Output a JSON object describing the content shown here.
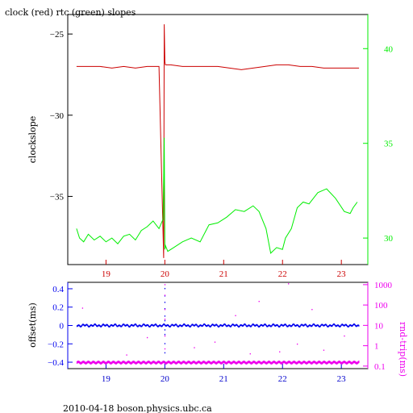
{
  "footer": "2010-04-18 boson.physics.ubc.ca",
  "colors": {
    "clock": "#cc0000",
    "rtc": "#00ee00",
    "offset": "#0000ee",
    "rndtrip": "#ee00ee",
    "frame": "#000000",
    "x_axis_top": "#cc0000",
    "x_axis_bottom": "#0000cc"
  },
  "chart_data": [
    {
      "type": "line",
      "title": "clock (red) rtc (green) slopes",
      "ylabel": "clockslope",
      "xlim": [
        18.35,
        23.45
      ],
      "ylim": [
        -39.2,
        -23.8
      ],
      "y2lim": [
        28.6,
        41.8
      ],
      "x_ticks": [
        19,
        20,
        21,
        22,
        23
      ],
      "y_ticks": [
        -35,
        -30,
        -25
      ],
      "y2_ticks": [
        30,
        35,
        40
      ],
      "series": [
        {
          "axis": "left",
          "color": "#cc0000",
          "x": [
            18.5,
            18.7,
            18.9,
            19.1,
            19.3,
            19.5,
            19.7,
            19.9,
            19.98,
            19.99,
            20.0,
            20.01,
            20.1,
            20.3,
            20.5,
            20.7,
            20.9,
            21.1,
            21.3,
            21.5,
            21.7,
            21.9,
            22.0,
            22.1,
            22.3,
            22.5,
            22.7,
            22.9,
            23.1,
            23.3
          ],
          "values": [
            -27.0,
            -27.0,
            -27.0,
            -27.1,
            -27.0,
            -27.1,
            -27.0,
            -27.0,
            -38.8,
            -24.4,
            -26.7,
            -26.9,
            -26.9,
            -27.0,
            -27.0,
            -27.0,
            -27.0,
            -27.1,
            -27.2,
            -27.1,
            -27.0,
            -26.9,
            -26.9,
            -26.9,
            -27.0,
            -27.0,
            -27.1,
            -27.1,
            -27.1,
            -27.1
          ]
        },
        {
          "axis": "right",
          "color": "#00ee00",
          "x": [
            18.5,
            18.55,
            18.62,
            18.7,
            18.8,
            18.9,
            19.0,
            19.1,
            19.2,
            19.3,
            19.4,
            19.5,
            19.6,
            19.7,
            19.8,
            19.9,
            19.97,
            19.99,
            20.0,
            20.01,
            20.05,
            20.15,
            20.3,
            20.45,
            20.6,
            20.75,
            20.9,
            21.05,
            21.2,
            21.35,
            21.5,
            21.6,
            21.72,
            21.8,
            21.9,
            22.0,
            22.05,
            22.15,
            22.25,
            22.35,
            22.45,
            22.6,
            22.75,
            22.9,
            23.05,
            23.15,
            23.2,
            23.27
          ],
          "values": [
            30.5,
            30.0,
            29.8,
            30.2,
            29.9,
            30.1,
            29.8,
            30.0,
            29.7,
            30.1,
            30.2,
            29.9,
            30.4,
            30.6,
            30.9,
            30.5,
            31.0,
            35.3,
            29.4,
            29.6,
            29.3,
            29.5,
            29.8,
            30.0,
            29.8,
            30.7,
            30.8,
            31.1,
            31.5,
            31.4,
            31.7,
            31.4,
            30.5,
            29.2,
            29.5,
            29.4,
            30.0,
            30.5,
            31.6,
            31.9,
            31.8,
            32.4,
            32.6,
            32.1,
            31.4,
            31.3,
            31.6,
            31.9
          ]
        }
      ]
    },
    {
      "type": "scatter",
      "ylabel": "offset(ms)",
      "y2label": "rnd-trip(ms)",
      "xlim": [
        18.35,
        23.45
      ],
      "ylim": [
        -0.47,
        0.47
      ],
      "y2lim": [
        0.075,
        1300
      ],
      "y2scale": "log",
      "x_ticks": [
        19,
        20,
        21,
        22,
        23
      ],
      "y_ticks": [
        -0.4,
        -0.2,
        0,
        0.2,
        0.4
      ],
      "y2_ticks": [
        0.1,
        1,
        10,
        100,
        1000
      ],
      "y2_tick_labels": [
        "0.1",
        "1",
        "10",
        "100",
        "1000"
      ],
      "series": [
        {
          "axis": "left",
          "color": "#0000ee",
          "x": [
            18.5,
            23.3
          ],
          "values": [
            0.0,
            0.0
          ],
          "spikes": [
            {
              "x": 20.0,
              "values": [
                0.4,
                0.32,
                0.25,
                0.18,
                0.1,
                0.05,
                -0.05,
                -0.1,
                -0.2,
                -0.3,
                -0.4
              ]
            }
          ]
        },
        {
          "axis": "right",
          "color": "#ee00ee",
          "x": [
            18.5,
            23.3
          ],
          "values": [
            0.15,
            0.15
          ],
          "outliers": [
            {
              "x": 20.0,
              "value": 1000
            },
            {
              "x": 20.0,
              "value": 300
            },
            {
              "x": 20.0,
              "value": 60
            },
            {
              "x": 20.0,
              "value": 20
            },
            {
              "x": 20.0,
              "value": 3
            },
            {
              "x": 20.0,
              "value": 0.7
            },
            {
              "x": 18.6,
              "value": 70
            },
            {
              "x": 19.35,
              "value": 0.35
            },
            {
              "x": 19.7,
              "value": 2.5
            },
            {
              "x": 20.5,
              "value": 0.8
            },
            {
              "x": 20.85,
              "value": 1.5
            },
            {
              "x": 21.2,
              "value": 30
            },
            {
              "x": 21.45,
              "value": 0.4
            },
            {
              "x": 21.6,
              "value": 150
            },
            {
              "x": 21.95,
              "value": 0.5
            },
            {
              "x": 22.1,
              "value": 1100
            },
            {
              "x": 22.25,
              "value": 1.2
            },
            {
              "x": 22.5,
              "value": 60
            },
            {
              "x": 22.7,
              "value": 0.6
            },
            {
              "x": 23.05,
              "value": 3
            }
          ]
        }
      ]
    }
  ]
}
